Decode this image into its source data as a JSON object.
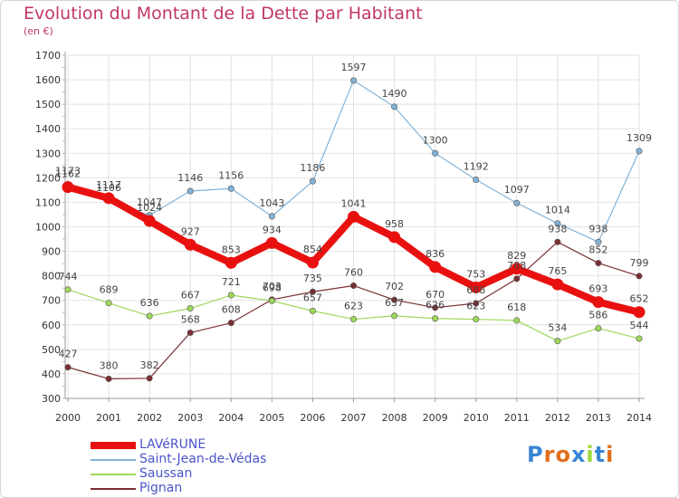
{
  "title": "Evolution du Montant de la Dette par Habitant",
  "subtitle": "(en €)",
  "logo_text": "Proxiti",
  "chart_data": {
    "type": "line",
    "title": "Evolution du Montant de la Dette par Habitant",
    "subtitle": "(en €)",
    "x": [
      "2000",
      "2001",
      "2002",
      "2003",
      "2004",
      "2005",
      "2006",
      "2007",
      "2008",
      "2009",
      "2010",
      "2011",
      "2012",
      "2013",
      "2014"
    ],
    "ylim": [
      300,
      1700
    ],
    "yticks": [
      300,
      400,
      500,
      600,
      700,
      800,
      900,
      1000,
      1100,
      1200,
      1300,
      1400,
      1500,
      1600,
      1700
    ],
    "grid": true,
    "legend_position": "bottom-left",
    "series": [
      {
        "name": "LAVéRUNE",
        "color": "#e8110f",
        "values": [
          1162,
          1117,
          1024,
          927,
          853,
          934,
          854,
          1041,
          958,
          836,
          753,
          829,
          765,
          693,
          652
        ]
      },
      {
        "name": "Saint-Jean-de-Védas",
        "color": "#82b3d8",
        "values": [
          1173,
          1106,
          1047,
          1146,
          1156,
          1043,
          1186,
          1597,
          1490,
          1300,
          1192,
          1097,
          1014,
          938,
          1309
        ]
      },
      {
        "name": "Saussan",
        "color": "#9ed85a",
        "values": [
          744,
          689,
          636,
          667,
          721,
          698,
          657,
          623,
          637,
          626,
          623,
          618,
          534,
          586,
          544
        ]
      },
      {
        "name": "Pignan",
        "color": "#7b2f33",
        "values": [
          427,
          380,
          382,
          568,
          608,
          703,
          735,
          760,
          702,
          670,
          688,
          788,
          938,
          852,
          799
        ]
      }
    ]
  }
}
